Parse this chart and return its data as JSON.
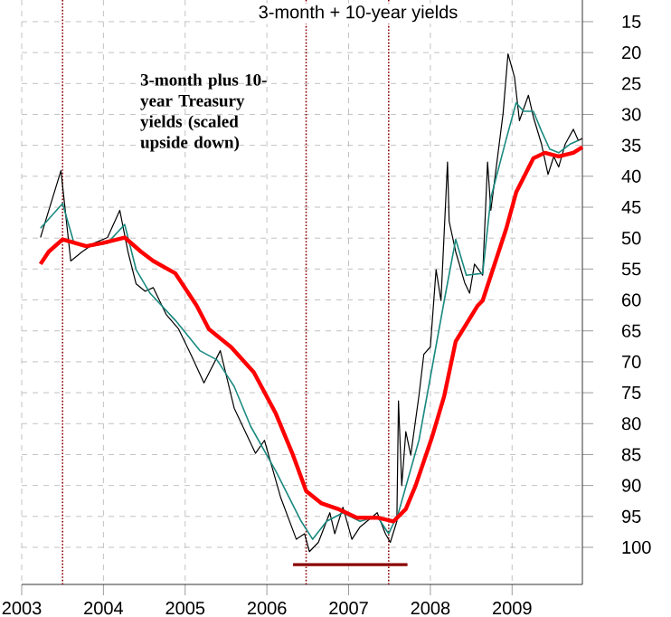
{
  "chart_data": {
    "type": "line",
    "title": "3-month + 10-year yields",
    "annotations": [
      "3-month plus 10-year Treasury yields (scaled upside down)"
    ],
    "xlim": [
      2003.0,
      2009.86
    ],
    "xticks": [
      2003,
      2004,
      2005,
      2006,
      2007,
      2008,
      2009
    ],
    "ylim": [
      106,
      11.5
    ],
    "yticks": [
      15,
      20,
      25,
      30,
      35,
      40,
      45,
      50,
      55,
      60,
      65,
      70,
      75,
      80,
      85,
      90,
      95,
      100
    ],
    "grid": true,
    "marker": "none",
    "line_style": "solid",
    "series": [
      {
        "color": "#000000",
        "x": [
          2003.23,
          2003.48,
          2003.6,
          2003.74,
          2003.89,
          2004.05,
          2004.2,
          2004.3,
          2004.4,
          2004.51,
          2004.61,
          2004.77,
          2004.92,
          2005.08,
          2005.23,
          2005.43,
          2005.6,
          2005.86,
          2005.97,
          2006.17,
          2006.36,
          2006.46,
          2006.52,
          2006.63,
          2006.77,
          2006.83,
          2006.93,
          2007.04,
          2007.14,
          2007.35,
          2007.45,
          2007.51,
          2007.59,
          2007.61,
          2007.65,
          2007.7,
          2007.76,
          2007.86,
          2007.92,
          2008.0,
          2008.07,
          2008.13,
          2008.21,
          2008.23,
          2008.31,
          2008.42,
          2008.48,
          2008.54,
          2008.64,
          2008.7,
          2008.74,
          2008.89,
          2008.95,
          2009.03,
          2009.09,
          2009.2,
          2009.26,
          2009.36,
          2009.44,
          2009.51,
          2009.57,
          2009.65,
          2009.75,
          2009.81,
          2009.86
        ],
        "values": [
          49.9,
          39.1,
          53.7,
          52.2,
          50.8,
          49.9,
          45.5,
          52.2,
          57.4,
          58.6,
          58.0,
          62.4,
          64.7,
          69.1,
          73.4,
          68.2,
          77.5,
          84.8,
          82.7,
          92.0,
          98.7,
          97.8,
          100.7,
          99.2,
          94.4,
          97.8,
          93.5,
          98.7,
          96.7,
          94.4,
          97.8,
          99.2,
          95.8,
          76.3,
          90.0,
          81.3,
          85.1,
          75.5,
          68.8,
          67.6,
          55.1,
          60.1,
          37.7,
          47.3,
          52.2,
          57.2,
          58.9,
          54.2,
          56.0,
          37.7,
          45.5,
          29.8,
          20.2,
          24.0,
          31.0,
          26.9,
          30.4,
          34.8,
          39.7,
          36.8,
          38.5,
          34.8,
          32.4,
          34.2,
          33.9
        ]
      },
      {
        "color": "#1a8a80",
        "x": [
          2003.23,
          2003.5,
          2003.64,
          2003.85,
          2004.05,
          2004.26,
          2004.4,
          2004.57,
          2004.88,
          2005.18,
          2005.39,
          2005.6,
          2005.8,
          2006.11,
          2006.42,
          2006.56,
          2006.73,
          2006.93,
          2007.14,
          2007.35,
          2007.49,
          2007.61,
          2007.86,
          2008.17,
          2008.31,
          2008.44,
          2008.64,
          2008.74,
          2008.93,
          2009.05,
          2009.14,
          2009.26,
          2009.36,
          2009.46,
          2009.57,
          2009.71,
          2009.81
        ],
        "values": [
          48.4,
          44.4,
          50.8,
          51.3,
          50.8,
          47.8,
          55.1,
          58.9,
          63.3,
          68.2,
          69.7,
          74.0,
          80.4,
          87.7,
          95.8,
          98.7,
          95.8,
          94.4,
          95.8,
          95.0,
          97.8,
          94.4,
          82.7,
          60.1,
          50.2,
          56.0,
          55.7,
          43.5,
          33.9,
          28.1,
          29.5,
          29.5,
          32.7,
          35.6,
          36.2,
          34.8,
          34.2
        ]
      },
      {
        "color": "#ff0000",
        "x": [
          2003.23,
          2003.33,
          2003.5,
          2003.79,
          2003.99,
          2004.26,
          2004.46,
          2004.61,
          2004.88,
          2005.14,
          2005.29,
          2005.56,
          2005.84,
          2006.11,
          2006.32,
          2006.48,
          2006.67,
          2006.87,
          2007.1,
          2007.35,
          2007.55,
          2007.7,
          2007.82,
          2008.02,
          2008.17,
          2008.31,
          2008.58,
          2008.64,
          2008.93,
          2009.05,
          2009.26,
          2009.4,
          2009.57,
          2009.75,
          2009.86
        ],
        "values": [
          54.2,
          52.2,
          50.2,
          51.3,
          50.8,
          49.9,
          52.2,
          53.7,
          55.7,
          60.9,
          64.7,
          67.6,
          71.7,
          78.4,
          85.1,
          90.9,
          92.9,
          93.8,
          95.2,
          95.2,
          95.8,
          93.8,
          90.0,
          82.2,
          75.5,
          66.7,
          60.9,
          60.1,
          48.4,
          42.6,
          37.1,
          36.2,
          36.8,
          36.2,
          35.3
        ]
      },
      {
        "color": "#8b0000",
        "x": [
          2006.32,
          2007.72
        ],
        "values": [
          102.8,
          102.8
        ]
      }
    ],
    "ref_lines": [
      {
        "axis": "x",
        "value": 2003.5,
        "color": "#8b0000",
        "line_style": "dotted"
      },
      {
        "axis": "x",
        "value": 2006.48,
        "color": "#8b0000",
        "line_style": "dotted"
      },
      {
        "axis": "x",
        "value": 2007.49,
        "color": "#8b0000",
        "line_style": "dotted"
      }
    ]
  }
}
